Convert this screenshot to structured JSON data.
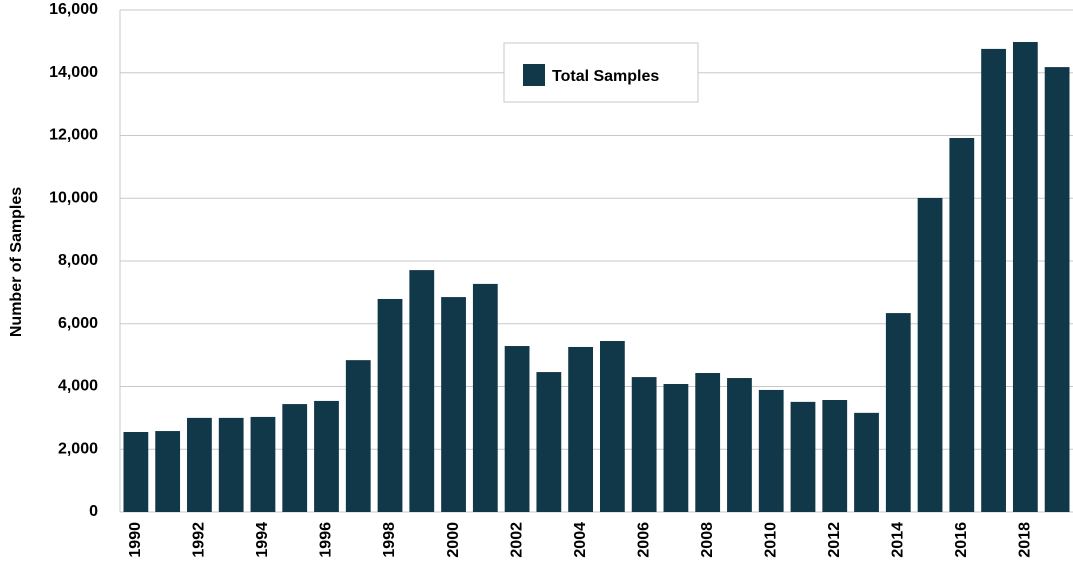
{
  "chart_data": {
    "type": "bar",
    "y_label": "Number of Samples",
    "categories": [
      "1990",
      null,
      "1992",
      null,
      "1994",
      null,
      "1996",
      null,
      "1998",
      null,
      "2000",
      null,
      "2002",
      null,
      "2004",
      null,
      "2006",
      null,
      "2008",
      null,
      "2010",
      null,
      "2012",
      null,
      "2014",
      null,
      "2016",
      null,
      "2018",
      null
    ],
    "series": [
      {
        "name": "Total Samples",
        "color": "#113848",
        "values": [
          2550,
          2580,
          3000,
          3000,
          3030,
          3440,
          3540,
          4840,
          6790,
          7710,
          6850,
          7270,
          5290,
          4460,
          5260,
          5450,
          4300,
          4080,
          4430,
          4270,
          3890,
          3510,
          3570,
          3160,
          6340,
          10010,
          11920,
          14760,
          14980,
          14180
        ]
      }
    ],
    "ylim": [
      0,
      16000
    ],
    "yticks": [
      {
        "value": 0,
        "label": "0"
      },
      {
        "value": 2000,
        "label": "2,000"
      },
      {
        "value": 4000,
        "label": "4,000"
      },
      {
        "value": 6000,
        "label": "6,000"
      },
      {
        "value": 8000,
        "label": "8,000"
      },
      {
        "value": 10000,
        "label": "10,000"
      },
      {
        "value": 12000,
        "label": "12,000"
      },
      {
        "value": 14000,
        "label": "14,000"
      },
      {
        "value": 16000,
        "label": "16,000"
      }
    ],
    "grid": true
  }
}
